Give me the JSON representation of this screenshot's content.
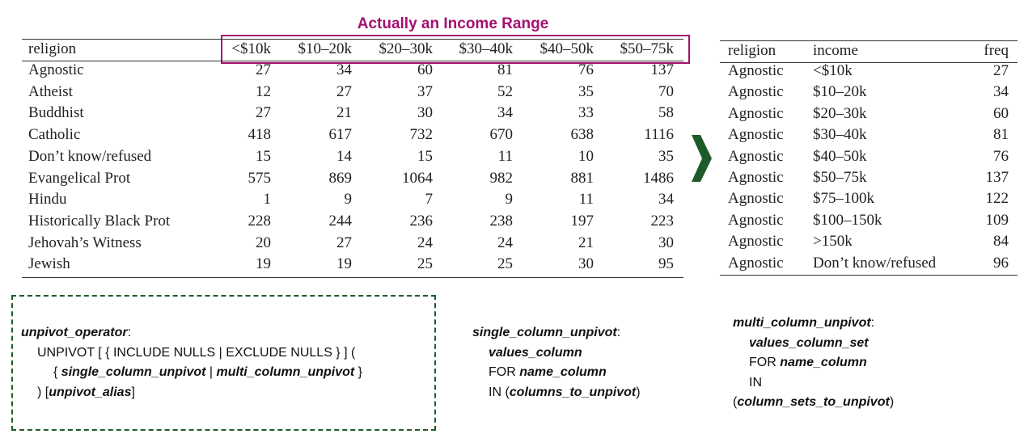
{
  "title": "Actually an Income Range",
  "colors": {
    "highlight": "#a3106f",
    "arrow": "#1e5a2a",
    "dashed_border": "#1e5a2a"
  },
  "wide_table": {
    "headers": [
      "religion",
      "<$10k",
      "$10–20k",
      "$20–30k",
      "$30–40k",
      "$40–50k",
      "$50–75k"
    ],
    "rows": [
      [
        "Agnostic",
        "27",
        "34",
        "60",
        "81",
        "76",
        "137"
      ],
      [
        "Atheist",
        "12",
        "27",
        "37",
        "52",
        "35",
        "70"
      ],
      [
        "Buddhist",
        "27",
        "21",
        "30",
        "34",
        "33",
        "58"
      ],
      [
        "Catholic",
        "418",
        "617",
        "732",
        "670",
        "638",
        "1116"
      ],
      [
        "Don’t know/refused",
        "15",
        "14",
        "15",
        "11",
        "10",
        "35"
      ],
      [
        "Evangelical Prot",
        "575",
        "869",
        "1064",
        "982",
        "881",
        "1486"
      ],
      [
        "Hindu",
        "1",
        "9",
        "7",
        "9",
        "11",
        "34"
      ],
      [
        "Historically Black Prot",
        "228",
        "244",
        "236",
        "238",
        "197",
        "223"
      ],
      [
        "Jehovah’s Witness",
        "20",
        "27",
        "24",
        "24",
        "21",
        "30"
      ],
      [
        "Jewish",
        "19",
        "19",
        "25",
        "25",
        "30",
        "95"
      ]
    ]
  },
  "long_table": {
    "headers": [
      "religion",
      "income",
      "freq"
    ],
    "rows": [
      [
        "Agnostic",
        "<$10k",
        "27"
      ],
      [
        "Agnostic",
        "$10–20k",
        "34"
      ],
      [
        "Agnostic",
        "$20–30k",
        "60"
      ],
      [
        "Agnostic",
        "$30–40k",
        "81"
      ],
      [
        "Agnostic",
        "$40–50k",
        "76"
      ],
      [
        "Agnostic",
        "$50–75k",
        "137"
      ],
      [
        "Agnostic",
        "$75–100k",
        "122"
      ],
      [
        "Agnostic",
        "$100–150k",
        "109"
      ],
      [
        "Agnostic",
        ">150k",
        "84"
      ],
      [
        "Agnostic",
        "Don’t know/refused",
        "96"
      ]
    ]
  },
  "syntax": {
    "unpivot_operator": {
      "name": "unpivot_operator",
      "l1": "UNPIVOT [ { INCLUDE NULLS | EXCLUDE NULLS } ] (",
      "l2_open": "{ ",
      "single": "single_column_unpivot",
      "sep": " | ",
      "multi": "multi_column_unpivot",
      "l2_close": " }",
      "l3_open": ") [",
      "alias": "unpivot_alias",
      "l3_close": "]"
    },
    "single_column_unpivot": {
      "name": "single_column_unpivot",
      "values": "values_column",
      "for_kw": "FOR ",
      "name_column": "name_column",
      "in_kw": "IN (",
      "columns": "columns_to_unpivot",
      "close": ")"
    },
    "multi_column_unpivot": {
      "name": "multi_column_unpivot",
      "values": "values_column_set",
      "for_kw": "FOR ",
      "name_column": "name_column",
      "in_kw": "IN",
      "open": "(",
      "column_sets": "column_sets_to_unpivot",
      "close": ")"
    }
  }
}
